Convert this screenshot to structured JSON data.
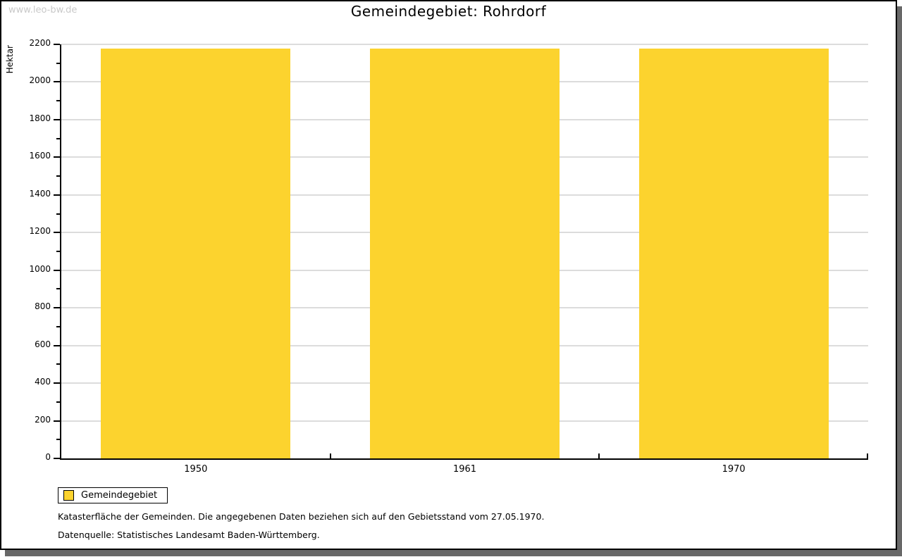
{
  "watermark": "www.leo-bw.de",
  "chart_data": {
    "type": "bar",
    "title": "Gemeindegebiet: Rohrdorf",
    "categories": [
      "1950",
      "1961",
      "1970"
    ],
    "series": [
      {
        "name": "Gemeindegebiet",
        "values": [
          2177,
          2177,
          2177
        ]
      }
    ],
    "xlabel": "",
    "ylabel": "Hektar",
    "ylim": [
      0,
      2200
    ],
    "ytick_step": 200,
    "minor_tick_step": 100,
    "ytick_labels": [
      "0",
      "200",
      "400",
      "600",
      "800",
      "1000",
      "1200",
      "1400",
      "1600",
      "1800",
      "2000",
      "2200"
    ],
    "grid": true,
    "bar_color": "#FCD32E",
    "bar_width_ratio": 0.705,
    "gridline_color": "#dcdcdc",
    "legend_position": "bottom-left"
  },
  "legend": {
    "items": [
      {
        "label": "Gemeindegebiet",
        "color": "#FCD32E"
      }
    ]
  },
  "footnotes": [
    "Katasterfläche der Gemeinden. Die angegebenen Daten beziehen sich auf den Gebietsstand vom 27.05.1970.",
    "Datenquelle: Statistisches Landesamt Baden-Württemberg."
  ],
  "colors": {
    "frame_border": "#000000",
    "frame_shadow": "#686868",
    "watermark": "#c9c9c9"
  }
}
